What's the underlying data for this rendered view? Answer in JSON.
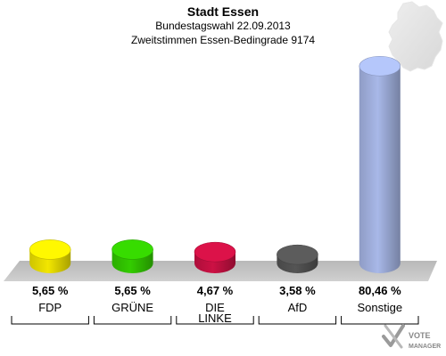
{
  "header": {
    "title": "Stadt Essen",
    "subtitle": "Bundestagswahl 22.09.2013",
    "subtitle2": "Zweitstimmen Essen-Bedingrade 9174"
  },
  "logo": {
    "line1": "VOTE",
    "line2": "MANAGER",
    "icon": "checkmark-cross-icon"
  },
  "map_icon": "germany-map-icon",
  "chart_data": {
    "type": "bar",
    "style": "3d-cylinder",
    "title": "Stadt Essen",
    "subtitle": "Bundestagswahl 22.09.2013 – Zweitstimmen Essen-Bedingrade 9174",
    "categories": [
      "FDP",
      "GRÜNE",
      "DIE LINKE",
      "AfD",
      "Sonstige"
    ],
    "category_lines": [
      [
        "FDP"
      ],
      [
        "GRÜNE"
      ],
      [
        "DIE",
        "LINKE"
      ],
      [
        "AfD"
      ],
      [
        "Sonstige"
      ]
    ],
    "values": [
      5.65,
      5.65,
      4.67,
      3.58,
      80.46
    ],
    "value_labels": [
      "5,65 %",
      "5,65 %",
      "4,67 %",
      "3,58 %",
      "80,46 %"
    ],
    "colors": [
      "#f2e600",
      "#33cc00",
      "#cc1144",
      "#555555",
      "#a8b8e8"
    ],
    "unit": "%",
    "ylim": [
      0,
      82
    ],
    "grid": false,
    "legend": "none"
  }
}
